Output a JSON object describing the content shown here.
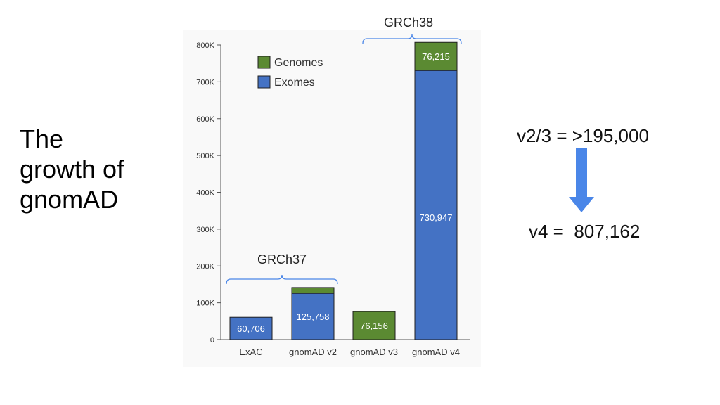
{
  "slide": {
    "title": "The\ngrowth of\ngnomAD"
  },
  "annotations": {
    "grch38": "GRCh38",
    "grch37": "GRCh37",
    "v23_note": "v2/3 = >195,000",
    "v4_note": "v4 =  807,162"
  },
  "colors": {
    "genomes": "#5b8a32",
    "exomes": "#4472c4",
    "arrow": "#4a86e8",
    "brace": "#4a86e8"
  },
  "chart_data": {
    "type": "bar",
    "stacked": true,
    "categories": [
      "ExAC",
      "gnomAD v2",
      "gnomAD v3",
      "gnomAD v4"
    ],
    "series": [
      {
        "name": "Exomes",
        "values": [
          60706,
          125758,
          0,
          730947
        ]
      },
      {
        "name": "Genomes",
        "values": [
          0,
          15708,
          76156,
          76215
        ]
      }
    ],
    "data_labels": [
      {
        "category": "ExAC",
        "series": "Exomes",
        "text": "60,706"
      },
      {
        "category": "gnomAD v2",
        "series": "Exomes",
        "text": "125,758"
      },
      {
        "category": "gnomAD v3",
        "series": "Genomes",
        "text": "76,156"
      },
      {
        "category": "gnomAD v4",
        "series": "Exomes",
        "text": "730,947"
      },
      {
        "category": "gnomAD v4",
        "series": "Genomes",
        "text": "76,215"
      }
    ],
    "yticks": [
      0,
      100000,
      200000,
      300000,
      400000,
      500000,
      600000,
      700000,
      800000
    ],
    "ytick_labels": [
      "0",
      "100K",
      "200K",
      "300K",
      "400K",
      "500K",
      "600K",
      "700K",
      "800K"
    ],
    "ylim": [
      0,
      800000
    ],
    "legend": {
      "position": "top-left",
      "order": [
        "Genomes",
        "Exomes"
      ]
    },
    "grid": false
  }
}
